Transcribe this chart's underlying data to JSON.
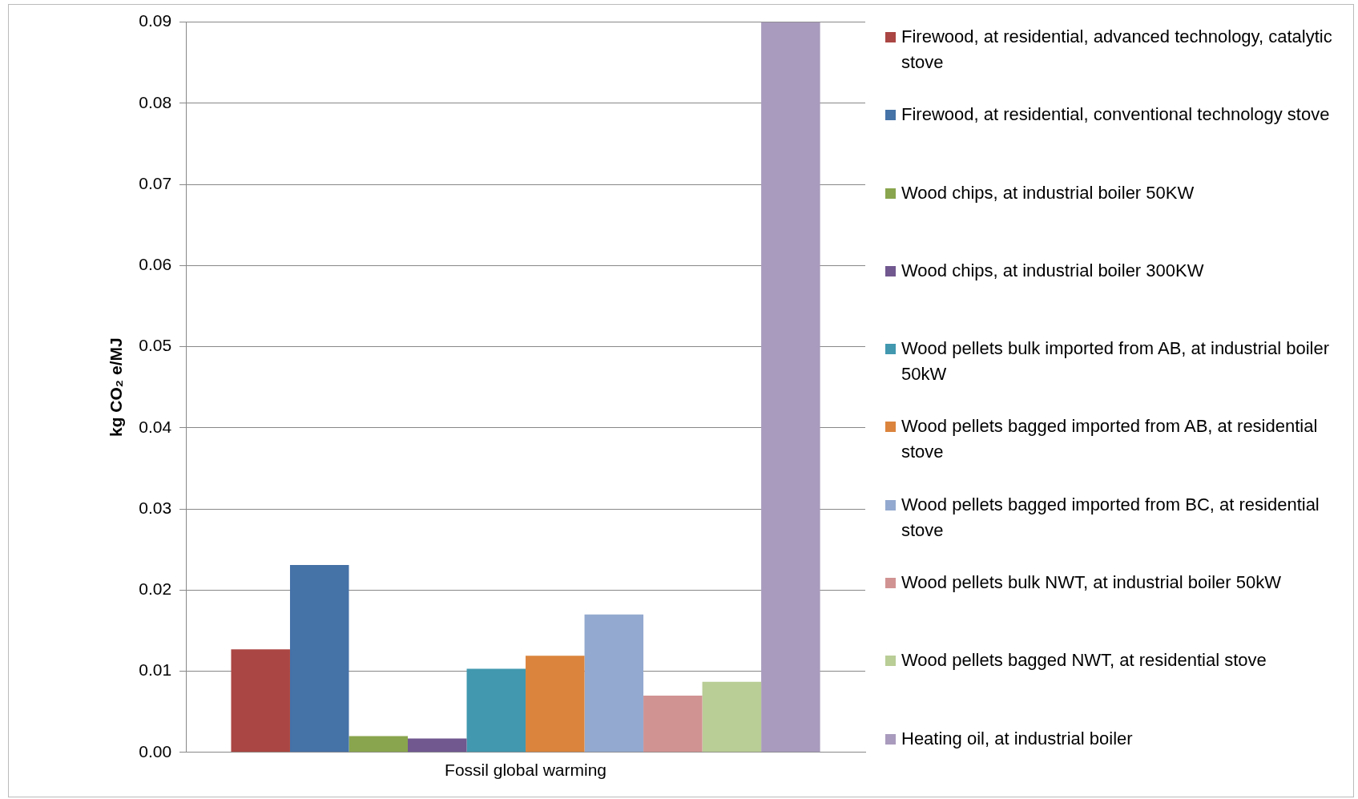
{
  "chart_data": {
    "type": "bar",
    "categories": [
      "Fossil global warming"
    ],
    "ylabel": "kg CO₂ e/MJ",
    "ylim": [
      0,
      0.09
    ],
    "yticks": [
      {
        "value": 0,
        "label": "0.00"
      },
      {
        "value": 0.01,
        "label": "0.01"
      },
      {
        "value": 0.02,
        "label": "0.02"
      },
      {
        "value": 0.03,
        "label": "0.03"
      },
      {
        "value": 0.04,
        "label": "0.04"
      },
      {
        "value": 0.05,
        "label": "0.05"
      },
      {
        "value": 0.06,
        "label": "0.06"
      },
      {
        "value": 0.07,
        "label": "0.07"
      },
      {
        "value": 0.08,
        "label": "0.08"
      },
      {
        "value": 0.09,
        "label": "0.09"
      }
    ],
    "grid": "y",
    "legend": "right",
    "series": [
      {
        "name": "Firewood, at residential, advanced technology, catalytic stove",
        "color": "#aa4643",
        "values": [
          0.0127
        ]
      },
      {
        "name": "Firewood, at residential, conventional technology stove",
        "color": "#4572a7",
        "values": [
          0.0231
        ]
      },
      {
        "name": "Wood chips, at industrial boiler 50KW",
        "color": "#89a54e",
        "values": [
          0.002
        ]
      },
      {
        "name": "Wood chips, at industrial boiler 300KW",
        "color": "#71588f",
        "values": [
          0.0017
        ]
      },
      {
        "name": "Wood pellets bulk imported from AB, at industrial boiler 50kW",
        "color": "#4198af",
        "values": [
          0.0103
        ]
      },
      {
        "name": "Wood pellets bagged imported from AB, at residential stove",
        "color": "#db843d",
        "values": [
          0.0119
        ]
      },
      {
        "name": "Wood pellets bagged imported from BC, at residential stove",
        "color": "#93a9cf",
        "values": [
          0.017
        ]
      },
      {
        "name": "Wood pellets bulk NWT, at industrial boiler 50kW",
        "color": "#d19392",
        "values": [
          0.007
        ]
      },
      {
        "name": "Wood pellets bagged NWT, at residential stove",
        "color": "#b9cd96",
        "values": [
          0.0087
        ]
      },
      {
        "name": "Heating oil, at industrial boiler",
        "color": "#a99bbd",
        "values": [
          0.09
        ]
      }
    ]
  }
}
